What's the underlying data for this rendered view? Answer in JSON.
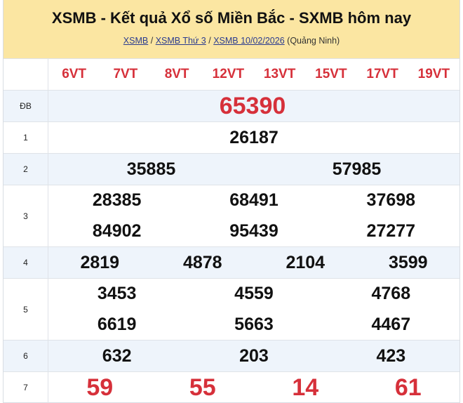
{
  "header": {
    "title": "XSMB - Kết quả Xổ số Miền Bắc - SXMB hôm nay",
    "breadcrumbs": [
      "XSMB",
      "XSMB Thứ 3",
      "XSMB 10/02/2026"
    ],
    "separator": "/",
    "region": "(Quảng Ninh)"
  },
  "codes": [
    "6VT",
    "7VT",
    "8VT",
    "12VT",
    "13VT",
    "15VT",
    "17VT",
    "19VT"
  ],
  "prizes": [
    {
      "label": "ĐB",
      "numbers": [
        "65390"
      ]
    },
    {
      "label": "1",
      "numbers": [
        "26187"
      ]
    },
    {
      "label": "2",
      "numbers": [
        "35885",
        "57985"
      ]
    },
    {
      "label": "3",
      "numbers": [
        "28385",
        "68491",
        "37698",
        "84902",
        "95439",
        "27277"
      ]
    },
    {
      "label": "4",
      "numbers": [
        "2819",
        "4878",
        "2104",
        "3599"
      ]
    },
    {
      "label": "5",
      "numbers": [
        "3453",
        "4559",
        "4768",
        "6619",
        "5663",
        "4467"
      ]
    },
    {
      "label": "6",
      "numbers": [
        "632",
        "203",
        "423"
      ]
    },
    {
      "label": "7",
      "numbers": [
        "59",
        "55",
        "14",
        "61"
      ]
    }
  ],
  "colors": {
    "header_bg": "#fbe6a2",
    "highlight": "#d6303a",
    "alt_row": "#eef4fb"
  }
}
